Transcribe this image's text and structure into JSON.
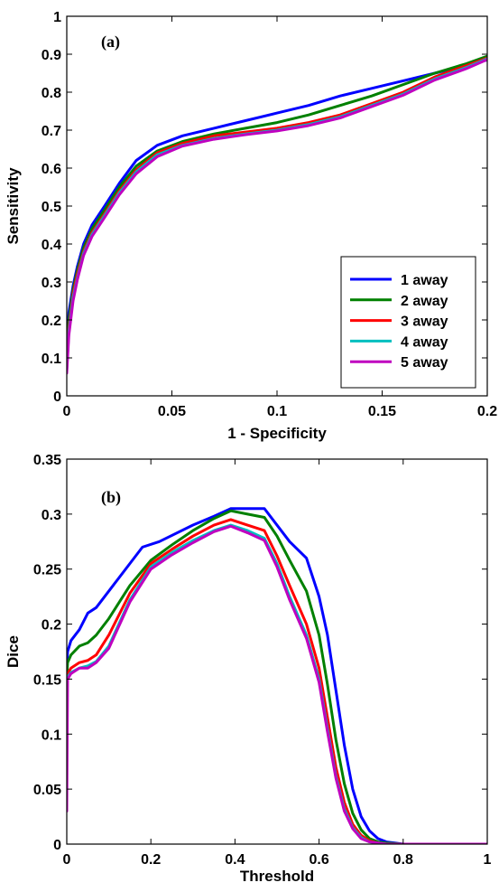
{
  "chart_data": [
    {
      "type": "line",
      "panel_label": "(a)",
      "xlabel": "1 - Specificity",
      "ylabel": "Sensitivity",
      "xlim": [
        0,
        0.2
      ],
      "ylim": [
        0,
        1
      ],
      "xticks": [
        0,
        0.05,
        0.1,
        0.15,
        0.2
      ],
      "xtick_labels": [
        "0",
        "0.05",
        "0.1",
        "0.15",
        "0.2"
      ],
      "yticks": [
        0,
        0.1,
        0.2,
        0.3,
        0.4,
        0.5,
        0.6,
        0.7,
        0.8,
        0.9,
        1
      ],
      "ytick_labels": [
        "0",
        "0.1",
        "0.2",
        "0.3",
        "0.4",
        "0.5",
        "0.6",
        "0.7",
        "0.8",
        "0.9",
        "1"
      ],
      "grid": false,
      "legend_position": "bottom-right",
      "series": [
        {
          "name": "1 away",
          "color": "#0000ff",
          "x": [
            0,
            0.001,
            0.003,
            0.005,
            0.008,
            0.012,
            0.018,
            0.025,
            0.033,
            0.043,
            0.055,
            0.07,
            0.085,
            0.1,
            0.115,
            0.13,
            0.145,
            0.16,
            0.175,
            0.19,
            0.2
          ],
          "y": [
            0.13,
            0.22,
            0.29,
            0.34,
            0.4,
            0.45,
            0.5,
            0.56,
            0.62,
            0.66,
            0.685,
            0.705,
            0.725,
            0.745,
            0.765,
            0.79,
            0.81,
            0.83,
            0.85,
            0.87,
            0.885
          ]
        },
        {
          "name": "2 away",
          "color": "#008000",
          "x": [
            0,
            0.001,
            0.003,
            0.005,
            0.008,
            0.012,
            0.018,
            0.025,
            0.033,
            0.043,
            0.055,
            0.07,
            0.085,
            0.1,
            0.115,
            0.13,
            0.145,
            0.16,
            0.175,
            0.19,
            0.2
          ],
          "y": [
            0.1,
            0.2,
            0.28,
            0.33,
            0.39,
            0.44,
            0.49,
            0.55,
            0.605,
            0.645,
            0.67,
            0.69,
            0.705,
            0.72,
            0.74,
            0.765,
            0.79,
            0.82,
            0.85,
            0.875,
            0.895
          ]
        },
        {
          "name": "3 away",
          "color": "#ff0000",
          "x": [
            0,
            0.001,
            0.003,
            0.005,
            0.008,
            0.012,
            0.018,
            0.025,
            0.033,
            0.043,
            0.055,
            0.07,
            0.085,
            0.1,
            0.115,
            0.13,
            0.145,
            0.16,
            0.175,
            0.19,
            0.2
          ],
          "y": [
            0.08,
            0.18,
            0.27,
            0.32,
            0.38,
            0.43,
            0.48,
            0.54,
            0.595,
            0.64,
            0.665,
            0.685,
            0.695,
            0.705,
            0.72,
            0.74,
            0.77,
            0.8,
            0.84,
            0.87,
            0.89
          ]
        },
        {
          "name": "4 away",
          "color": "#00bfbf",
          "x": [
            0,
            0.001,
            0.003,
            0.005,
            0.008,
            0.012,
            0.018,
            0.025,
            0.033,
            0.043,
            0.055,
            0.07,
            0.085,
            0.1,
            0.115,
            0.13,
            0.145,
            0.16,
            0.175,
            0.19,
            0.2
          ],
          "y": [
            0.07,
            0.17,
            0.26,
            0.31,
            0.375,
            0.425,
            0.475,
            0.535,
            0.59,
            0.635,
            0.66,
            0.678,
            0.69,
            0.7,
            0.715,
            0.735,
            0.765,
            0.795,
            0.835,
            0.865,
            0.888
          ]
        },
        {
          "name": "5 away",
          "color": "#bf00bf",
          "x": [
            0,
            0.001,
            0.003,
            0.005,
            0.008,
            0.012,
            0.018,
            0.025,
            0.033,
            0.043,
            0.055,
            0.07,
            0.085,
            0.1,
            0.115,
            0.13,
            0.145,
            0.16,
            0.175,
            0.19,
            0.2
          ],
          "y": [
            0.06,
            0.16,
            0.25,
            0.305,
            0.37,
            0.42,
            0.47,
            0.53,
            0.585,
            0.63,
            0.658,
            0.676,
            0.688,
            0.698,
            0.712,
            0.732,
            0.762,
            0.792,
            0.832,
            0.862,
            0.886
          ]
        }
      ]
    },
    {
      "type": "line",
      "panel_label": "(b)",
      "xlabel": "Threshold",
      "ylabel": "Dice",
      "xlim": [
        0,
        1
      ],
      "ylim": [
        0,
        0.35
      ],
      "xticks": [
        0,
        0.2,
        0.4,
        0.6,
        0.8,
        1
      ],
      "xtick_labels": [
        "0",
        "0.2",
        "0.4",
        "0.6",
        "0.8",
        "1"
      ],
      "yticks": [
        0,
        0.05,
        0.1,
        0.15,
        0.2,
        0.25,
        0.3,
        0.35
      ],
      "ytick_labels": [
        "0",
        "0.05",
        "0.1",
        "0.15",
        "0.2",
        "0.25",
        "0.3",
        "0.35"
      ],
      "grid": false,
      "series": [
        {
          "name": "1 away",
          "color": "#0000ff",
          "x": [
            0,
            0.002,
            0.01,
            0.03,
            0.05,
            0.07,
            0.1,
            0.15,
            0.18,
            0.22,
            0.3,
            0.35,
            0.39,
            0.43,
            0.47,
            0.5,
            0.53,
            0.57,
            0.6,
            0.62,
            0.64,
            0.66,
            0.68,
            0.7,
            0.72,
            0.74,
            0.76,
            0.78,
            0.8,
            1
          ],
          "y": [
            0.16,
            0.175,
            0.185,
            0.195,
            0.21,
            0.215,
            0.23,
            0.255,
            0.27,
            0.275,
            0.29,
            0.298,
            0.305,
            0.305,
            0.305,
            0.29,
            0.275,
            0.26,
            0.225,
            0.19,
            0.14,
            0.09,
            0.05,
            0.025,
            0.012,
            0.005,
            0.002,
            0.001,
            0,
            0
          ]
        },
        {
          "name": "2 away",
          "color": "#008000",
          "x": [
            0,
            0.002,
            0.01,
            0.03,
            0.05,
            0.07,
            0.1,
            0.15,
            0.2,
            0.25,
            0.3,
            0.35,
            0.39,
            0.43,
            0.47,
            0.5,
            0.53,
            0.57,
            0.6,
            0.62,
            0.64,
            0.66,
            0.68,
            0.7,
            0.72,
            0.74,
            0.76,
            0.8,
            1
          ],
          "y": [
            0.15,
            0.165,
            0.172,
            0.18,
            0.183,
            0.19,
            0.205,
            0.235,
            0.258,
            0.272,
            0.285,
            0.296,
            0.303,
            0.3,
            0.297,
            0.28,
            0.258,
            0.23,
            0.19,
            0.145,
            0.095,
            0.055,
            0.028,
            0.013,
            0.005,
            0.002,
            0.001,
            0,
            0
          ]
        },
        {
          "name": "3 away",
          "color": "#ff0000",
          "x": [
            0,
            0.002,
            0.01,
            0.03,
            0.05,
            0.07,
            0.1,
            0.15,
            0.2,
            0.25,
            0.3,
            0.35,
            0.39,
            0.43,
            0.47,
            0.5,
            0.53,
            0.57,
            0.6,
            0.62,
            0.64,
            0.66,
            0.68,
            0.7,
            0.72,
            0.74,
            0.76,
            0.8,
            1
          ],
          "y": [
            0.145,
            0.155,
            0.16,
            0.165,
            0.167,
            0.172,
            0.19,
            0.228,
            0.255,
            0.268,
            0.28,
            0.29,
            0.295,
            0.29,
            0.285,
            0.262,
            0.235,
            0.2,
            0.16,
            0.115,
            0.07,
            0.038,
            0.018,
            0.008,
            0.003,
            0.001,
            0,
            0,
            0
          ]
        },
        {
          "name": "4 away",
          "color": "#00bfbf",
          "x": [
            0,
            0.002,
            0.01,
            0.03,
            0.05,
            0.07,
            0.1,
            0.15,
            0.2,
            0.25,
            0.3,
            0.35,
            0.39,
            0.43,
            0.47,
            0.5,
            0.53,
            0.57,
            0.6,
            0.62,
            0.64,
            0.66,
            0.68,
            0.7,
            0.72,
            0.74,
            0.76,
            0.8,
            1
          ],
          "y": [
            0.145,
            0.152,
            0.156,
            0.16,
            0.162,
            0.166,
            0.18,
            0.222,
            0.252,
            0.265,
            0.276,
            0.285,
            0.29,
            0.285,
            0.278,
            0.255,
            0.225,
            0.19,
            0.15,
            0.105,
            0.062,
            0.032,
            0.015,
            0.006,
            0.002,
            0.001,
            0,
            0,
            0
          ]
        },
        {
          "name": "5 away",
          "color": "#bf00bf",
          "x": [
            0,
            0.002,
            0.01,
            0.03,
            0.05,
            0.07,
            0.1,
            0.15,
            0.2,
            0.25,
            0.3,
            0.35,
            0.39,
            0.43,
            0.47,
            0.5,
            0.53,
            0.57,
            0.6,
            0.62,
            0.64,
            0.66,
            0.68,
            0.7,
            0.72,
            0.74,
            0.76,
            0.8,
            1
          ],
          "y": [
            0.03,
            0.15,
            0.155,
            0.16,
            0.16,
            0.165,
            0.178,
            0.22,
            0.25,
            0.263,
            0.274,
            0.284,
            0.289,
            0.283,
            0.276,
            0.252,
            0.222,
            0.187,
            0.147,
            0.102,
            0.06,
            0.03,
            0.014,
            0.005,
            0.002,
            0.001,
            0,
            0,
            0
          ]
        }
      ]
    }
  ]
}
